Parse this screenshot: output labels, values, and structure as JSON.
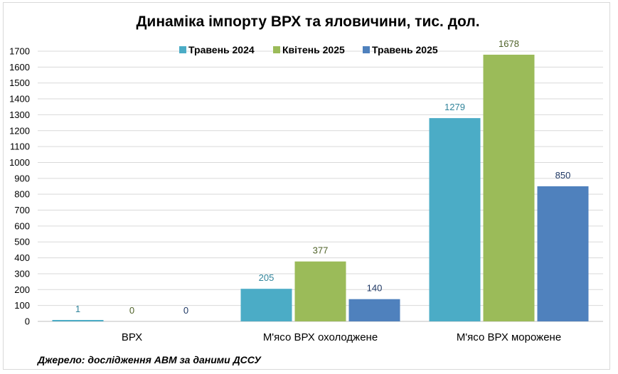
{
  "chart_data": {
    "type": "bar",
    "title": "Динаміка імпорту ВРХ та яловичини, тис. дол.",
    "categories": [
      "ВРХ",
      "М'ясо ВРХ охолоджене",
      "М'ясо ВРХ морожене"
    ],
    "series": [
      {
        "name": "Травень 2024",
        "values": [
          1,
          205,
          1279
        ],
        "color": "#4bacc6",
        "label_color": "#31849b"
      },
      {
        "name": "Квітень 2025",
        "values": [
          0,
          377,
          1678
        ],
        "color": "#9bbb59",
        "label_color": "#4f6228"
      },
      {
        "name": "Травень 2025",
        "values": [
          0,
          140,
          850
        ],
        "color": "#4f81bd",
        "label_color": "#1f3864"
      }
    ],
    "yticks": [
      0,
      100,
      200,
      300,
      400,
      500,
      600,
      700,
      800,
      900,
      1000,
      1100,
      1200,
      1300,
      1400,
      1500,
      1600,
      1700
    ],
    "ylim": [
      0,
      1700
    ],
    "xlabel": "",
    "ylabel": "",
    "grid": true,
    "legend_position": "top"
  },
  "source": "Джерело: дослідження АВМ за даними ДССУ"
}
